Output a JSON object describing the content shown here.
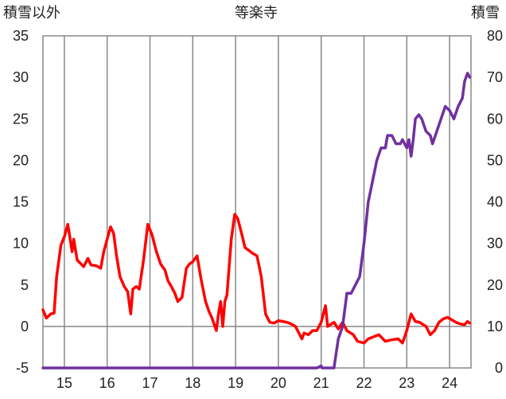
{
  "chart_data": {
    "type": "line",
    "title": "等楽寺",
    "left_axis_label": "積雪以外",
    "right_axis_label": "積雪",
    "x_ticks": [
      "15",
      "16",
      "17",
      "18",
      "19",
      "20",
      "21",
      "22",
      "23",
      "24"
    ],
    "x_range": [
      14.5,
      24.5
    ],
    "y_left_ticks": [
      "35",
      "30",
      "25",
      "20",
      "15",
      "10",
      "5",
      "0",
      "-5"
    ],
    "y_left_range": [
      -5,
      35
    ],
    "y_right_ticks": [
      "80",
      "70",
      "60",
      "50",
      "40",
      "30",
      "20",
      "10",
      "0"
    ],
    "y_right_range": [
      0,
      80
    ],
    "grid": "vertical",
    "series": [
      {
        "axis": "left",
        "color": "#ff0000",
        "points": [
          [
            14.5,
            2.0
          ],
          [
            14.58,
            1.0
          ],
          [
            14.68,
            1.5
          ],
          [
            14.76,
            1.6
          ],
          [
            14.82,
            6.0
          ],
          [
            14.92,
            9.8
          ],
          [
            15.0,
            10.8
          ],
          [
            15.08,
            12.3
          ],
          [
            15.12,
            11.0
          ],
          [
            15.18,
            9.0
          ],
          [
            15.22,
            10.5
          ],
          [
            15.3,
            8.0
          ],
          [
            15.45,
            7.2
          ],
          [
            15.55,
            8.2
          ],
          [
            15.62,
            7.4
          ],
          [
            15.75,
            7.3
          ],
          [
            15.85,
            7.0
          ],
          [
            15.92,
            9.0
          ],
          [
            16.0,
            10.5
          ],
          [
            16.08,
            12.0
          ],
          [
            16.15,
            11.2
          ],
          [
            16.22,
            8.5
          ],
          [
            16.3,
            6.0
          ],
          [
            16.4,
            4.8
          ],
          [
            16.48,
            4.2
          ],
          [
            16.55,
            1.5
          ],
          [
            16.6,
            4.5
          ],
          [
            16.68,
            4.8
          ],
          [
            16.75,
            4.5
          ],
          [
            16.85,
            8.0
          ],
          [
            16.95,
            12.3
          ],
          [
            17.05,
            11.0
          ],
          [
            17.15,
            9.0
          ],
          [
            17.25,
            7.5
          ],
          [
            17.35,
            6.8
          ],
          [
            17.42,
            5.5
          ],
          [
            17.5,
            4.8
          ],
          [
            17.58,
            4.0
          ],
          [
            17.65,
            3.0
          ],
          [
            17.75,
            3.5
          ],
          [
            17.85,
            7.0
          ],
          [
            17.92,
            7.5
          ],
          [
            18.0,
            7.8
          ],
          [
            18.1,
            8.5
          ],
          [
            18.2,
            5.5
          ],
          [
            18.3,
            3.0
          ],
          [
            18.38,
            1.8
          ],
          [
            18.45,
            1.0
          ],
          [
            18.55,
            -0.5
          ],
          [
            18.6,
            1.5
          ],
          [
            18.65,
            3.0
          ],
          [
            18.7,
            0.0
          ],
          [
            18.75,
            3.0
          ],
          [
            18.8,
            3.8
          ],
          [
            18.9,
            10.5
          ],
          [
            18.98,
            13.5
          ],
          [
            19.05,
            13.0
          ],
          [
            19.15,
            11.0
          ],
          [
            19.22,
            9.5
          ],
          [
            19.3,
            9.2
          ],
          [
            19.4,
            8.8
          ],
          [
            19.5,
            8.5
          ],
          [
            19.6,
            6.0
          ],
          [
            19.7,
            1.5
          ],
          [
            19.8,
            0.5
          ],
          [
            19.9,
            0.4
          ],
          [
            20.0,
            0.7
          ],
          [
            20.1,
            0.6
          ],
          [
            20.2,
            0.5
          ],
          [
            20.3,
            0.3
          ],
          [
            20.4,
            0.0
          ],
          [
            20.5,
            -1.0
          ],
          [
            20.55,
            -1.5
          ],
          [
            20.6,
            -0.8
          ],
          [
            20.7,
            -1.0
          ],
          [
            20.8,
            -0.5
          ],
          [
            20.9,
            -0.5
          ],
          [
            21.0,
            0.5
          ],
          [
            21.05,
            1.5
          ],
          [
            21.1,
            2.5
          ],
          [
            21.15,
            0.0
          ],
          [
            21.3,
            0.5
          ],
          [
            21.4,
            -0.3
          ],
          [
            21.5,
            0.5
          ],
          [
            21.6,
            -0.5
          ],
          [
            21.75,
            -1.0
          ],
          [
            21.85,
            -1.8
          ],
          [
            22.0,
            -2.0
          ],
          [
            22.1,
            -1.5
          ],
          [
            22.2,
            -1.3
          ],
          [
            22.35,
            -1.0
          ],
          [
            22.5,
            -1.8
          ],
          [
            22.65,
            -1.6
          ],
          [
            22.8,
            -1.5
          ],
          [
            22.9,
            -2.0
          ],
          [
            23.0,
            -0.5
          ],
          [
            23.05,
            0.5
          ],
          [
            23.1,
            1.5
          ],
          [
            23.2,
            0.6
          ],
          [
            23.3,
            0.5
          ],
          [
            23.45,
            0.0
          ],
          [
            23.55,
            -1.0
          ],
          [
            23.65,
            -0.5
          ],
          [
            23.75,
            0.5
          ],
          [
            23.85,
            0.9
          ],
          [
            23.95,
            1.1
          ],
          [
            24.05,
            0.8
          ],
          [
            24.15,
            0.5
          ],
          [
            24.25,
            0.3
          ],
          [
            24.35,
            0.2
          ],
          [
            24.42,
            0.6
          ],
          [
            24.47,
            0.4
          ]
        ]
      },
      {
        "axis": "right",
        "color": "#7030a0",
        "points": [
          [
            14.5,
            0
          ],
          [
            20.8,
            0
          ],
          [
            20.9,
            0
          ],
          [
            21.0,
            0.5
          ],
          [
            21.02,
            0
          ],
          [
            21.3,
            0
          ],
          [
            21.4,
            7
          ],
          [
            21.5,
            10
          ],
          [
            21.6,
            18
          ],
          [
            21.7,
            18
          ],
          [
            21.8,
            20
          ],
          [
            21.9,
            22
          ],
          [
            22.0,
            30
          ],
          [
            22.1,
            40
          ],
          [
            22.2,
            45
          ],
          [
            22.3,
            50
          ],
          [
            22.4,
            53
          ],
          [
            22.5,
            53
          ],
          [
            22.55,
            56
          ],
          [
            22.65,
            56
          ],
          [
            22.75,
            54
          ],
          [
            22.85,
            54
          ],
          [
            22.9,
            55
          ],
          [
            23.0,
            53
          ],
          [
            23.05,
            55
          ],
          [
            23.1,
            51
          ],
          [
            23.15,
            55
          ],
          [
            23.2,
            60
          ],
          [
            23.28,
            61
          ],
          [
            23.35,
            60
          ],
          [
            23.45,
            57
          ],
          [
            23.55,
            56
          ],
          [
            23.6,
            54
          ],
          [
            23.7,
            57
          ],
          [
            23.8,
            60
          ],
          [
            23.9,
            63
          ],
          [
            24.0,
            62
          ],
          [
            24.1,
            60
          ],
          [
            24.2,
            63
          ],
          [
            24.3,
            65
          ],
          [
            24.35,
            69
          ],
          [
            24.42,
            71
          ],
          [
            24.47,
            70
          ]
        ]
      }
    ]
  }
}
